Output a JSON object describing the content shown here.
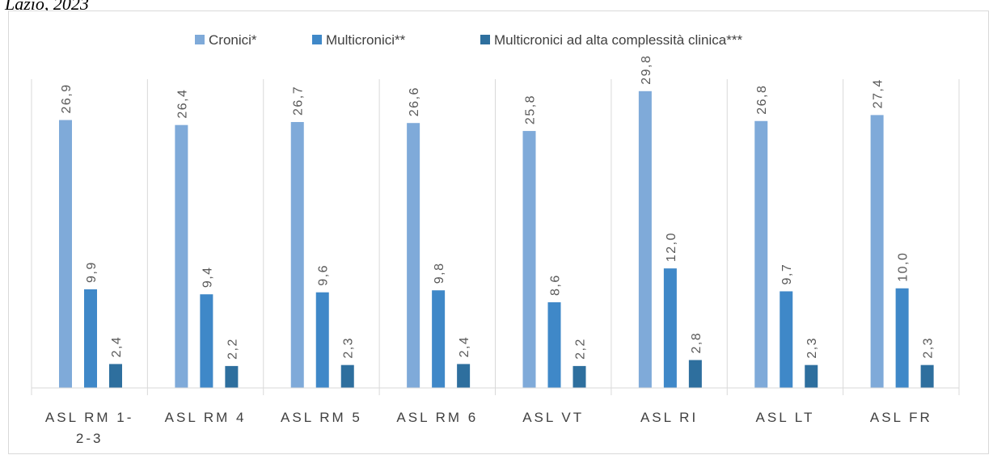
{
  "caption_fragment": "Lazio, 2023",
  "chart_data": {
    "type": "bar",
    "title": "",
    "xlabel": "",
    "ylabel": "",
    "ylim": [
      0,
      31
    ],
    "grid": false,
    "legend_position": "top",
    "categories": [
      "ASL RM 1-2-3",
      "ASL RM 4",
      "ASL RM 5",
      "ASL RM 6",
      "ASL VT",
      "ASL RI",
      "ASL LT",
      "ASL FR"
    ],
    "category_lines": [
      [
        "ASL RM 1-",
        "2-3"
      ],
      [
        "ASL RM 4"
      ],
      [
        "ASL RM 5"
      ],
      [
        "ASL RM 6"
      ],
      [
        "ASL VT"
      ],
      [
        "ASL RI"
      ],
      [
        "ASL LT"
      ],
      [
        "ASL FR"
      ]
    ],
    "series": [
      {
        "name": "Cronici*",
        "color": "#7faad9",
        "values": [
          26.9,
          26.4,
          26.7,
          26.6,
          25.8,
          29.8,
          26.8,
          27.4
        ],
        "labels": [
          "26,9",
          "26,4",
          "26,7",
          "26,6",
          "25,8",
          "29,8",
          "26,8",
          "27,4"
        ]
      },
      {
        "name": "Multicronici**",
        "color": "#3f88c8",
        "values": [
          9.9,
          9.4,
          9.6,
          9.8,
          8.6,
          12.0,
          9.7,
          10.0
        ],
        "labels": [
          "9,9",
          "9,4",
          "9,6",
          "9,8",
          "8,6",
          "12,0",
          "9,7",
          "10,0"
        ]
      },
      {
        "name": "Multicronici ad alta complessità clinica***",
        "color": "#2e6f9e",
        "values": [
          2.4,
          2.2,
          2.3,
          2.4,
          2.2,
          2.8,
          2.3,
          2.3
        ],
        "labels": [
          "2,4",
          "2,2",
          "2,3",
          "2,4",
          "2,2",
          "2,8",
          "2,3",
          "2,3"
        ]
      }
    ]
  }
}
